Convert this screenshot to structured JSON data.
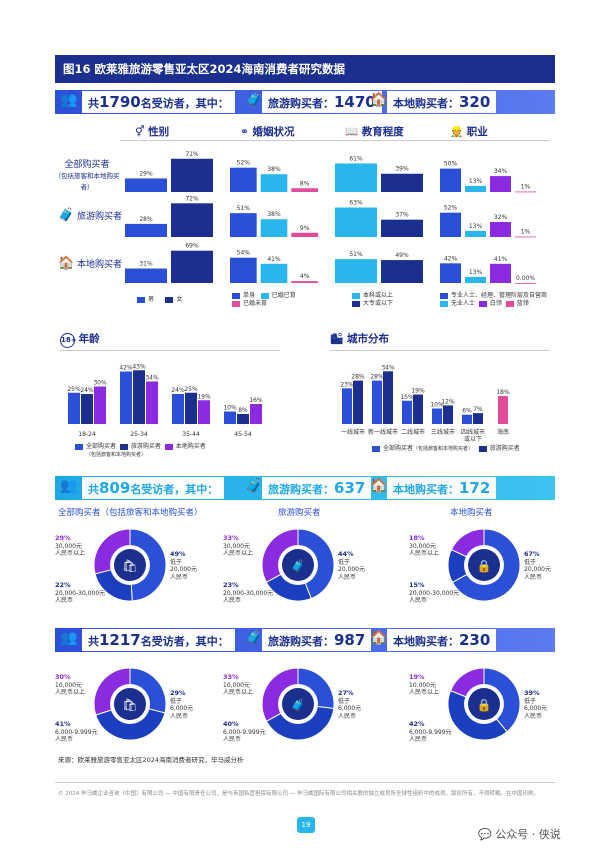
{
  "title": "图16 欧莱雅旅游零售亚太区2024海南消费者研究数据",
  "header1": {
    "total_pre": "共",
    "total_num": "1790",
    "total_post": "名受访者，其中：",
    "tourist": "旅游购买者：",
    "tourist_num": "1470",
    "local": "本地购买者：",
    "local_num": "320"
  },
  "sections": {
    "gender": "性别",
    "marital": "婚姻状况",
    "education": "教育程度",
    "occupation": "职业"
  },
  "rows": {
    "all": "全部购买者",
    "all_sub": "（包括旅客和本地购买者）",
    "tourist": "旅游购买者",
    "local": "本地购买者"
  },
  "colors": {
    "blue": "#2c4fd8",
    "navy": "#1b2f8f",
    "pink": "#e24a9a",
    "cyan": "#29b6ea",
    "purple": "#8a2be2",
    "lightblue": "#5b7cf0"
  },
  "chart_data": [
    {
      "type": "bar",
      "title": "性别",
      "categories": [
        "全部购买者",
        "旅游购买者",
        "本地购买者"
      ],
      "series": [
        {
          "name": "男",
          "values": [
            29,
            28,
            31
          ]
        },
        {
          "name": "女",
          "values": [
            71,
            72,
            69
          ]
        }
      ]
    },
    {
      "type": "bar",
      "title": "婚姻状况",
      "categories": [
        "全部购买者",
        "旅游购买者",
        "本地购买者"
      ],
      "series": [
        {
          "name": "单身",
          "values": [
            52,
            51,
            54
          ]
        },
        {
          "name": "已婚已育",
          "values": [
            38,
            38,
            41
          ]
        },
        {
          "name": "已婚未育",
          "values": [
            8,
            9,
            4
          ]
        }
      ]
    },
    {
      "type": "bar",
      "title": "教育程度",
      "categories": [
        "全部购买者",
        "旅游购买者",
        "本地购买者"
      ],
      "series": [
        {
          "name": "本科或以上",
          "values": [
            61,
            63,
            51
          ]
        },
        {
          "name": "大专或以下",
          "values": [
            39,
            37,
            49
          ]
        }
      ]
    },
    {
      "type": "bar",
      "title": "职业",
      "categories": [
        "全部购买者",
        "旅游购买者",
        "本地购买者"
      ],
      "series": [
        {
          "name": "专业人士、经理、管理阶层及自营商",
          "values": [
            50,
            52,
            42
          ]
        },
        {
          "name": "无业人士",
          "values": [
            13,
            13,
            13
          ]
        },
        {
          "name": "白领",
          "values": [
            34,
            32,
            41
          ]
        },
        {
          "name": "蓝领",
          "values": [
            1,
            1,
            0
          ]
        }
      ],
      "labels": [
        [
          "50%",
          "13%",
          "34%",
          "1%"
        ],
        [
          "52%",
          "13%",
          "32%",
          "1%"
        ],
        [
          "42%",
          "13%",
          "41%",
          "0.00%"
        ]
      ]
    },
    {
      "type": "bar",
      "title": "年龄",
      "categories": [
        "18-24",
        "25-34",
        "35-44",
        "45-54"
      ],
      "series": [
        {
          "name": "全部购买者",
          "values": [
            25,
            42,
            24,
            10
          ]
        },
        {
          "name": "旅游购买者",
          "values": [
            24,
            43,
            25,
            8
          ]
        },
        {
          "name": "本地购买者",
          "values": [
            30,
            34,
            19,
            16
          ]
        }
      ]
    },
    {
      "type": "bar",
      "title": "城市分布",
      "categories": [
        "一线城市",
        "新一线城市",
        "二线城市",
        "三线城市",
        "四线城市或以下",
        "海南"
      ],
      "series": [
        {
          "name": "全部购买者",
          "values": [
            23,
            28,
            15,
            10,
            6,
            18
          ]
        },
        {
          "name": "旅游购买者",
          "values": [
            28,
            34,
            19,
            12,
            7,
            null
          ]
        }
      ]
    },
    {
      "type": "pie",
      "title": "全部购买者（包括旅客和本地购买者）",
      "group": "809",
      "slices": [
        {
          "label": "30,000元人民币以上",
          "value": 29
        },
        {
          "label": "低于20,000元人民币",
          "value": 49
        },
        {
          "label": "20,000-30,000元人民币",
          "value": 22
        }
      ]
    },
    {
      "type": "pie",
      "title": "旅游购买者",
      "group": "809",
      "slices": [
        {
          "label": "30,000元人民币以上",
          "value": 33
        },
        {
          "label": "低于20,000元人民币",
          "value": 44
        },
        {
          "label": "20,000-30,000元人民币",
          "value": 23
        }
      ]
    },
    {
      "type": "pie",
      "title": "本地购买者",
      "group": "809",
      "slices": [
        {
          "label": "30,000元人民币以上",
          "value": 18
        },
        {
          "label": "低于20,000元人民币",
          "value": 67
        },
        {
          "label": "20,000-30,000元人民币",
          "value": 15
        }
      ]
    },
    {
      "type": "pie",
      "title": "全部购买者",
      "group": "1217",
      "slices": [
        {
          "label": "10,000元人民币以上",
          "value": 30
        },
        {
          "label": "低于6,000元人民币",
          "value": 29
        },
        {
          "label": "6,000-9,999元人民币",
          "value": 41
        }
      ]
    },
    {
      "type": "pie",
      "title": "旅游购买者",
      "group": "1217",
      "slices": [
        {
          "label": "10,000元人民币以上",
          "value": 33
        },
        {
          "label": "低于6,000元人民币",
          "value": 27
        },
        {
          "label": "6,000-9,999元人民币",
          "value": 40
        }
      ]
    },
    {
      "type": "pie",
      "title": "本地购买者",
      "group": "1217",
      "slices": [
        {
          "label": "10,000元人民币以上",
          "value": 19
        },
        {
          "label": "低于6,000元人民币",
          "value": 39
        },
        {
          "label": "6,000-9,999元人民币",
          "value": 42
        }
      ]
    }
  ],
  "legends": {
    "gender": [
      "男",
      "女"
    ],
    "marital": [
      "单身",
      "已婚已育",
      "已婚未育"
    ],
    "education": [
      "本科或以上",
      "大专或以下"
    ],
    "occupation": [
      "专业人士、经理、管理阶层及自营商",
      "无业人士",
      "白领",
      "蓝领"
    ],
    "age": [
      "全部购买者",
      "（包括旅客和本地购买者）",
      "旅游购买者",
      "本地购买者"
    ],
    "city": [
      "全部购买者",
      "（包括旅客和本地购买者）",
      "旅游购买者"
    ]
  },
  "age_title": "年龄",
  "city_title": "城市分布",
  "header2": {
    "pre": "共",
    "num": "809",
    "post": "名受访者，其中：",
    "tourist": "旅游购买者：",
    "tourist_num": "637",
    "local": "本地购买者：",
    "local_num": "172"
  },
  "header3": {
    "pre": "共",
    "num": "1217",
    "post": "名受访者，其中：",
    "tourist": "旅游购买者：",
    "tourist_num": "987",
    "local": "本地购买者：",
    "local_num": "230"
  },
  "pie_titles1": [
    "全部购买者（包括旅客和本地购买者）",
    "旅游购买者",
    "本地购买者"
  ],
  "source": "来源：欧莱雅旅游零售亚太区2024海南消费者研究，毕马威分析",
  "copyright": "© 2024 毕马威企业咨询（中国）有限公司 — 中国有限责任公司，是与英国私营担保有限公司 — 毕马威国际有限公司相关联的独立成员所全球性组织中的成员。版权所有，不得转载。在中国印刷。",
  "page": "19",
  "watermark": "公众号 · 侠说"
}
